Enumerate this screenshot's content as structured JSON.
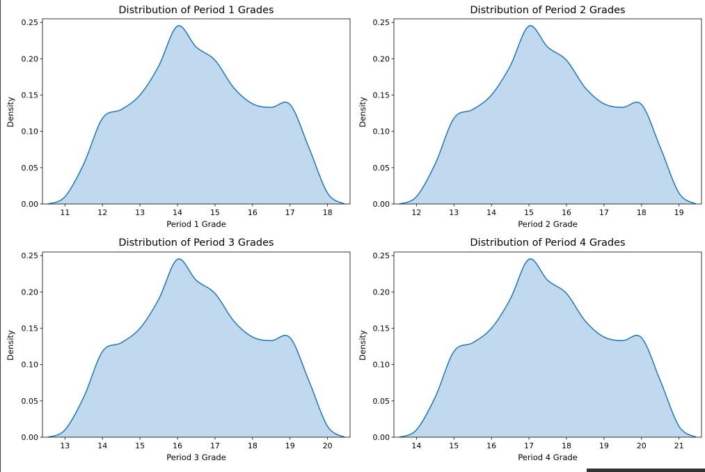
{
  "chart_data": [
    {
      "type": "area",
      "title": "Distribution of Period 1 Grades",
      "xlabel": "Period 1 Grade",
      "ylabel": "Density",
      "xlim": [
        10.4,
        18.6
      ],
      "ylim": [
        0,
        0.255
      ],
      "xticks": [
        11,
        12,
        13,
        14,
        15,
        16,
        17,
        18
      ],
      "yticks": [
        0.0,
        0.05,
        0.1,
        0.15,
        0.2,
        0.25
      ],
      "ytick_labels": [
        "0.00",
        "0.05",
        "0.10",
        "0.15",
        "0.20",
        "0.25"
      ],
      "x": [
        10.55,
        11.0,
        11.5,
        12.0,
        12.5,
        13.0,
        13.5,
        14.0,
        14.5,
        15.0,
        15.5,
        16.0,
        16.5,
        17.0,
        17.5,
        18.0,
        18.45
      ],
      "y": [
        0.0,
        0.01,
        0.055,
        0.118,
        0.13,
        0.15,
        0.19,
        0.245,
        0.216,
        0.198,
        0.16,
        0.138,
        0.133,
        0.137,
        0.078,
        0.015,
        0.0
      ]
    },
    {
      "type": "area",
      "title": "Distribution of Period 2 Grades",
      "xlabel": "Period 2 Grade",
      "ylabel": "Density",
      "xlim": [
        11.4,
        19.6
      ],
      "ylim": [
        0,
        0.255
      ],
      "xticks": [
        12,
        13,
        14,
        15,
        16,
        17,
        18,
        19
      ],
      "yticks": [
        0.0,
        0.05,
        0.1,
        0.15,
        0.2,
        0.25
      ],
      "ytick_labels": [
        "0.00",
        "0.05",
        "0.10",
        "0.15",
        "0.20",
        "0.25"
      ],
      "x": [
        11.55,
        12.0,
        12.5,
        13.0,
        13.5,
        14.0,
        14.5,
        15.0,
        15.5,
        16.0,
        16.5,
        17.0,
        17.5,
        18.0,
        18.5,
        19.0,
        19.45
      ],
      "y": [
        0.0,
        0.01,
        0.055,
        0.118,
        0.13,
        0.15,
        0.19,
        0.245,
        0.216,
        0.198,
        0.16,
        0.138,
        0.133,
        0.137,
        0.078,
        0.015,
        0.0
      ]
    },
    {
      "type": "area",
      "title": "Distribution of Period 3 Grades",
      "xlabel": "Period 3 Grade",
      "ylabel": "Density",
      "xlim": [
        12.4,
        20.6
      ],
      "ylim": [
        0,
        0.255
      ],
      "xticks": [
        13,
        14,
        15,
        16,
        17,
        18,
        19,
        20
      ],
      "yticks": [
        0.0,
        0.05,
        0.1,
        0.15,
        0.2,
        0.25
      ],
      "ytick_labels": [
        "0.00",
        "0.05",
        "0.10",
        "0.15",
        "0.20",
        "0.25"
      ],
      "x": [
        12.55,
        13.0,
        13.5,
        14.0,
        14.5,
        15.0,
        15.5,
        16.0,
        16.5,
        17.0,
        17.5,
        18.0,
        18.5,
        19.0,
        19.5,
        20.0,
        20.45
      ],
      "y": [
        0.0,
        0.01,
        0.055,
        0.118,
        0.13,
        0.15,
        0.19,
        0.245,
        0.216,
        0.198,
        0.16,
        0.138,
        0.133,
        0.137,
        0.078,
        0.015,
        0.0
      ]
    },
    {
      "type": "area",
      "title": "Distribution of Period 4 Grades",
      "xlabel": "Period 4 Grade",
      "ylabel": "Density",
      "xlim": [
        13.4,
        21.6
      ],
      "ylim": [
        0,
        0.255
      ],
      "xticks": [
        14,
        15,
        16,
        17,
        18,
        19,
        20,
        21
      ],
      "yticks": [
        0.0,
        0.05,
        0.1,
        0.15,
        0.2,
        0.25
      ],
      "ytick_labels": [
        "0.00",
        "0.05",
        "0.10",
        "0.15",
        "0.20",
        "0.25"
      ],
      "x": [
        13.55,
        14.0,
        14.5,
        15.0,
        15.5,
        16.0,
        16.5,
        17.0,
        17.5,
        18.0,
        18.5,
        19.0,
        19.5,
        20.0,
        20.5,
        21.0,
        21.45
      ],
      "y": [
        0.0,
        0.01,
        0.055,
        0.118,
        0.13,
        0.15,
        0.19,
        0.245,
        0.216,
        0.198,
        0.16,
        0.138,
        0.133,
        0.137,
        0.078,
        0.015,
        0.0
      ]
    }
  ],
  "colors": {
    "line": "#1f77b4",
    "fill": "#c1d9ee",
    "axes": "#000000"
  }
}
